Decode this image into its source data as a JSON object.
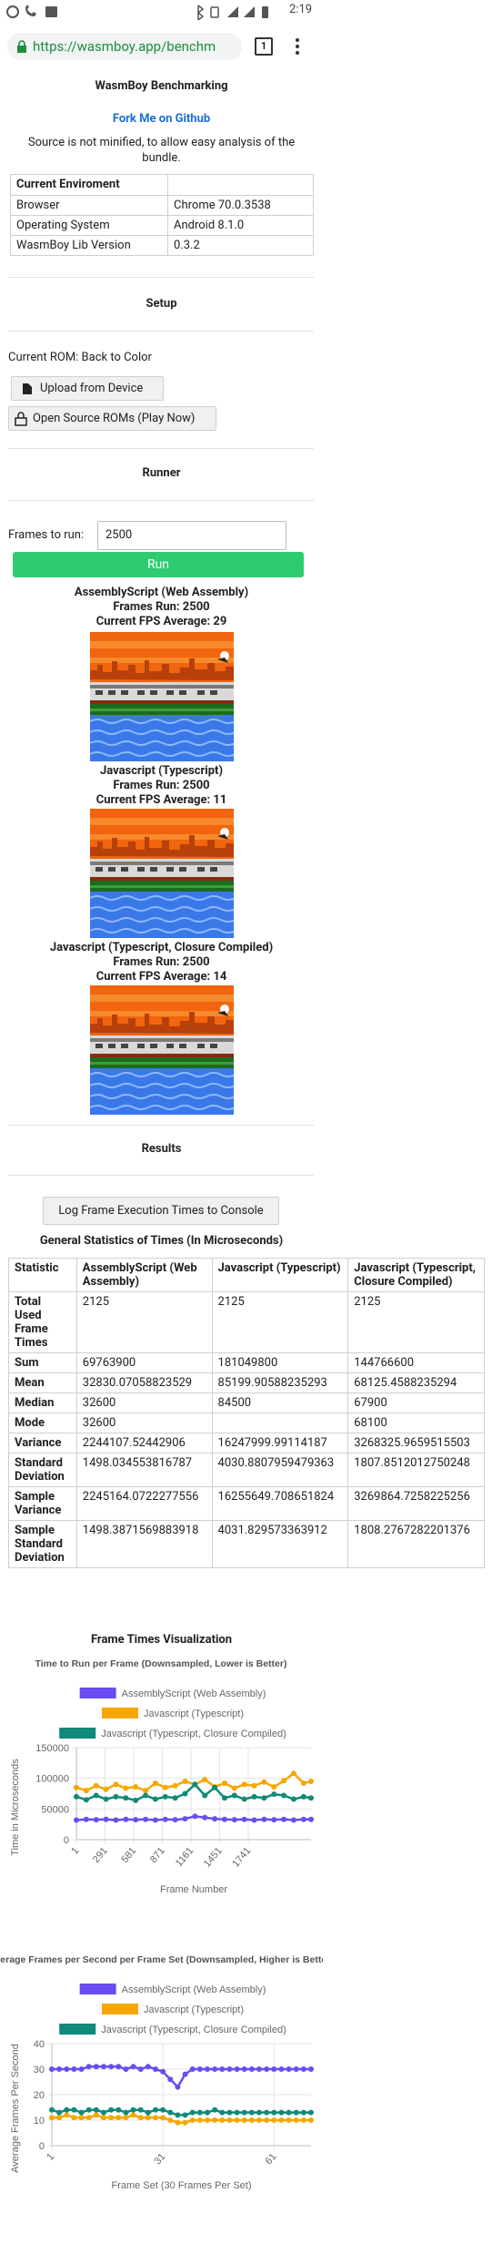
{
  "status_bar": {
    "time": "2:19"
  },
  "browser": {
    "url": "https://wasmboy.app/benchm",
    "tab_count": "1"
  },
  "header": {
    "title": "WasmBoy Benchmarking",
    "link": "Fork Me on Github",
    "note": "Source is not minified, to allow easy analysis of the bundle."
  },
  "environment": {
    "header": "Current Enviroment",
    "rows": [
      [
        "Browser",
        "Chrome 70.0.3538"
      ],
      [
        "Operating System",
        "Android 8.1.0"
      ],
      [
        "WasmBoy Lib Version",
        "0.3.2"
      ]
    ]
  },
  "setup": {
    "heading": "Setup",
    "current_rom": "Current ROM: Back to Color",
    "upload_button": "Upload from Device",
    "open_source_button": "Open Source ROMs (Play Now)"
  },
  "runner": {
    "heading": "Runner",
    "frames_label": "Frames to run:",
    "frames_input": "2500",
    "run_button": "Run",
    "results": [
      {
        "name": "AssemblyScript (Web Assembly)",
        "frames": "Frames Run: 2500",
        "fps": "Current FPS Average: 29"
      },
      {
        "name": "Javascript (Typescript)",
        "frames": "Frames Run: 2500",
        "fps": "Current FPS Average: 11"
      },
      {
        "name": "Javascript (Typescript, Closure Compiled)",
        "frames": "Frames Run: 2500",
        "fps": "Current FPS Average: 14"
      }
    ]
  },
  "results": {
    "heading": "Results",
    "log_button": "Log Frame Execution Times to Console",
    "stats_title": "General Statistics of Times (In Microseconds)",
    "table": {
      "header": [
        "Statistic",
        "AssemblyScript (Web Assembly)",
        "Javascript (Typescript)",
        "Javascript (Typescript, Closure Compiled)"
      ],
      "rows": [
        [
          "Total Used Frame Times",
          "2125",
          "2125",
          "2125"
        ],
        [
          "Sum",
          "69763900",
          "181049800",
          "144766600"
        ],
        [
          "Mean",
          "32830.07058823529",
          "85199.90588235293",
          "68125.4588235294"
        ],
        [
          "Median",
          "32600",
          "84500",
          "67900"
        ],
        [
          "Mode",
          "32600",
          null,
          "68100"
        ],
        [
          "Variance",
          "2244107.52442906",
          "16247999.99114187",
          "3268325.9659515503"
        ],
        [
          "Standard Deviation",
          "1498.034553816787",
          "4030.8807959479363",
          "1807.8512012750248"
        ],
        [
          "Sample Variance",
          "2245164.0722277556",
          "16255649.708651824",
          "3269864.7258225256"
        ],
        [
          "Sample Standard Deviation",
          "1498.3871569883918",
          "4031.829573363912",
          "1808.2767282201376"
        ]
      ]
    },
    "viz_title": "Frame Times Visualization"
  },
  "chart_data": [
    {
      "type": "line",
      "title": "Time to Run per Frame (Downsampled, Lower is Better)",
      "xlabel": "Frame Number",
      "ylabel": "Time in Microseconds",
      "x": [
        1,
        101,
        201,
        301,
        401,
        501,
        601,
        701,
        801,
        901,
        1001,
        1101,
        1201,
        1301,
        1401,
        1501,
        1601,
        1701,
        1801,
        1901,
        2001,
        2101,
        2201,
        2301,
        2376
      ],
      "xlim": [
        1,
        2376
      ],
      "xticks": [
        1,
        291,
        581,
        871,
        1161,
        1451,
        1741
      ],
      "ylim": [
        0,
        150000
      ],
      "yticks": [
        0,
        50000,
        100000,
        150000
      ],
      "grid": true,
      "series": [
        {
          "name": "AssemblyScript (Web Assembly)",
          "color": "#6a4cf0",
          "values": [
            32000,
            33000,
            32500,
            33000,
            32000,
            33000,
            32500,
            33000,
            32000,
            33000,
            32500,
            34000,
            38000,
            36000,
            34000,
            33000,
            32500,
            33000,
            32000,
            33000,
            32500,
            33000,
            32000,
            33000,
            33000
          ]
        },
        {
          "name": "Javascript (Typescript)",
          "color": "#f5a700",
          "values": [
            85000,
            80000,
            88000,
            82000,
            90000,
            84000,
            86000,
            80000,
            92000,
            85000,
            88000,
            95000,
            90000,
            98000,
            86000,
            92000,
            84000,
            90000,
            88000,
            94000,
            86000,
            96000,
            108000,
            92000,
            95000
          ]
        },
        {
          "name": "Javascript (Typescript, Closure Compiled)",
          "color": "#0f8a78",
          "values": [
            70000,
            65000,
            72000,
            66000,
            70000,
            68000,
            64000,
            72000,
            66000,
            70000,
            68000,
            75000,
            90000,
            72000,
            85000,
            68000,
            72000,
            66000,
            70000,
            68000,
            74000,
            72000,
            66000,
            70000,
            68000
          ]
        }
      ]
    },
    {
      "type": "line",
      "title": "Average Frames per Second per Frame Set (Downsampled, Higher is Better)",
      "xlabel": "Frame Set (30 Frames Per Set)",
      "ylabel": "Average Frames Per Second",
      "x": [
        1,
        3,
        5,
        7,
        9,
        11,
        13,
        15,
        17,
        19,
        21,
        23,
        25,
        27,
        29,
        31,
        33,
        35,
        37,
        39,
        41,
        43,
        45,
        47,
        49,
        51,
        53,
        55,
        57,
        59,
        61,
        63,
        65,
        67,
        69,
        71
      ],
      "xlim": [
        1,
        71
      ],
      "xticks": [
        1,
        31,
        61
      ],
      "ylim": [
        0,
        40
      ],
      "yticks": [
        0,
        10,
        20,
        30,
        40
      ],
      "grid": true,
      "series": [
        {
          "name": "AssemblyScript (Web Assembly)",
          "color": "#6a4cf0",
          "values": [
            30,
            30,
            30,
            30,
            30,
            31,
            31,
            31,
            31,
            31,
            30,
            31,
            30,
            31,
            30,
            29,
            26,
            23,
            28,
            30,
            30,
            30,
            30,
            30,
            30,
            30,
            30,
            30,
            30,
            30,
            30,
            30,
            30,
            30,
            30,
            30
          ]
        },
        {
          "name": "Javascript (Typescript)",
          "color": "#f5a700",
          "values": [
            11,
            11,
            12,
            11,
            11,
            11,
            12,
            11,
            11,
            11,
            11,
            12,
            11,
            11,
            11,
            11,
            10,
            9,
            9,
            10,
            10,
            10,
            10,
            10,
            10,
            10,
            10,
            10,
            10,
            10,
            10,
            10,
            10,
            10,
            10,
            10
          ]
        },
        {
          "name": "Javascript (Typescript, Closure Compiled)",
          "color": "#0f8a78",
          "values": [
            14,
            13,
            14,
            14,
            13,
            14,
            14,
            13,
            14,
            14,
            13,
            14,
            14,
            13,
            14,
            14,
            13,
            12,
            12,
            13,
            13,
            13,
            14,
            13,
            13,
            13,
            13,
            13,
            13,
            13,
            13,
            13,
            13,
            13,
            13,
            13
          ]
        }
      ]
    }
  ]
}
